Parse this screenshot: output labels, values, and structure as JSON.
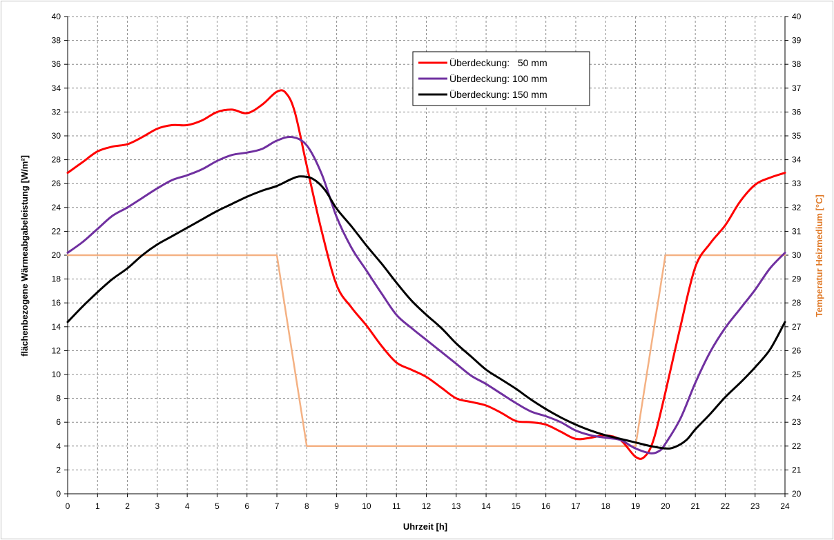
{
  "chart_data": {
    "type": "line",
    "title": "",
    "xlabel": "Uhrzeit [h]",
    "ylabel": "flächenbezogene Wärmeabgabeleistung [W/m²]",
    "y2label": "Temperatur Heizmedium [°C]",
    "xlim": [
      0,
      24
    ],
    "ylim": [
      0,
      40
    ],
    "y2lim": [
      20,
      40
    ],
    "x_ticks": [
      0,
      1,
      2,
      3,
      4,
      5,
      6,
      7,
      8,
      9,
      10,
      11,
      12,
      13,
      14,
      15,
      16,
      17,
      18,
      19,
      20,
      21,
      22,
      23,
      24
    ],
    "y_ticks": [
      0,
      2,
      4,
      6,
      8,
      10,
      12,
      14,
      16,
      18,
      20,
      22,
      24,
      26,
      28,
      30,
      32,
      34,
      36,
      38,
      40
    ],
    "y2_ticks": [
      20,
      21,
      22,
      23,
      24,
      25,
      26,
      27,
      28,
      29,
      30,
      31,
      32,
      33,
      34,
      35,
      36,
      37,
      38,
      39,
      40
    ],
    "grid": true,
    "legend_position": "top-center",
    "series": [
      {
        "name": "Überdeckung:   50 mm",
        "color": "#ff0000",
        "axis": "left",
        "x": [
          0,
          0.5,
          1,
          1.5,
          2,
          2.5,
          3,
          3.5,
          4,
          4.5,
          5,
          5.5,
          6,
          6.5,
          7,
          7.3,
          7.6,
          8,
          8.5,
          9,
          9.5,
          10,
          10.5,
          11,
          11.5,
          12,
          12.5,
          13,
          13.5,
          14,
          14.5,
          15,
          15.5,
          16,
          16.5,
          17,
          17.5,
          18,
          18.5,
          19,
          19.3,
          19.6,
          20,
          20.5,
          21,
          21.5,
          22,
          22.5,
          23,
          23.5,
          24
        ],
        "values": [
          26.9,
          27.8,
          28.7,
          29.1,
          29.3,
          29.9,
          30.6,
          30.9,
          30.9,
          31.3,
          32.0,
          32.2,
          31.9,
          32.6,
          33.7,
          33.6,
          32.0,
          27.5,
          22.0,
          17.5,
          15.6,
          14.1,
          12.4,
          11.0,
          10.4,
          9.8,
          8.9,
          8.0,
          7.7,
          7.4,
          6.8,
          6.1,
          6.0,
          5.8,
          5.2,
          4.6,
          4.7,
          4.9,
          4.5,
          3.1,
          3.1,
          4.5,
          8.5,
          14.0,
          19.0,
          21.0,
          22.5,
          24.5,
          25.9,
          26.5,
          26.9
        ]
      },
      {
        "name": "Überdeckung: 100 mm",
        "color": "#7030a0",
        "axis": "left",
        "x": [
          0,
          0.5,
          1,
          1.5,
          2,
          2.5,
          3,
          3.5,
          4,
          4.5,
          5,
          5.5,
          6,
          6.5,
          7,
          7.5,
          8,
          8.5,
          9,
          9.5,
          10,
          10.5,
          11,
          11.5,
          12,
          12.5,
          13,
          13.5,
          14,
          14.5,
          15,
          15.5,
          16,
          16.5,
          17,
          17.5,
          18,
          18.5,
          19,
          19.5,
          19.8,
          20,
          20.5,
          21,
          21.5,
          22,
          22.5,
          23,
          23.5,
          24
        ],
        "values": [
          20.2,
          21.1,
          22.2,
          23.3,
          24.0,
          24.8,
          25.6,
          26.3,
          26.7,
          27.2,
          27.9,
          28.4,
          28.6,
          28.9,
          29.6,
          29.9,
          29.2,
          26.8,
          23.2,
          20.6,
          18.7,
          16.8,
          15.0,
          13.9,
          12.9,
          11.9,
          10.9,
          9.9,
          9.2,
          8.4,
          7.6,
          6.9,
          6.5,
          6.0,
          5.3,
          4.9,
          4.7,
          4.5,
          3.8,
          3.4,
          3.6,
          4.2,
          6.3,
          9.3,
          11.9,
          13.9,
          15.5,
          17.1,
          18.9,
          20.2
        ]
      },
      {
        "name": "Überdeckung: 150 mm",
        "color": "#000000",
        "axis": "left",
        "x": [
          0,
          0.5,
          1,
          1.5,
          2,
          2.5,
          3,
          3.5,
          4,
          4.5,
          5,
          5.5,
          6,
          6.5,
          7,
          7.5,
          7.8,
          8.2,
          8.6,
          9,
          9.5,
          10,
          10.5,
          11,
          11.5,
          12,
          12.5,
          13,
          13.5,
          14,
          14.5,
          15,
          15.5,
          16,
          16.5,
          17,
          17.5,
          18,
          18.5,
          19,
          19.5,
          20,
          20.3,
          20.7,
          21,
          21.5,
          22,
          22.5,
          23,
          23.5,
          24
        ],
        "values": [
          14.4,
          15.7,
          16.9,
          18.0,
          18.9,
          20.0,
          20.9,
          21.6,
          22.3,
          23.0,
          23.7,
          24.3,
          24.9,
          25.4,
          25.8,
          26.4,
          26.6,
          26.4,
          25.5,
          23.9,
          22.4,
          20.8,
          19.3,
          17.7,
          16.2,
          15.0,
          13.9,
          12.6,
          11.5,
          10.4,
          9.6,
          8.8,
          7.9,
          7.1,
          6.4,
          5.8,
          5.3,
          4.9,
          4.6,
          4.3,
          4.0,
          3.8,
          3.9,
          4.5,
          5.4,
          6.7,
          8.1,
          9.3,
          10.6,
          12.1,
          14.4
        ]
      },
      {
        "name": "",
        "color": "#f4b183",
        "axis": "right",
        "x": [
          0,
          7,
          8,
          19,
          20,
          24
        ],
        "values": [
          30,
          30,
          22,
          22,
          30,
          30
        ]
      }
    ]
  }
}
